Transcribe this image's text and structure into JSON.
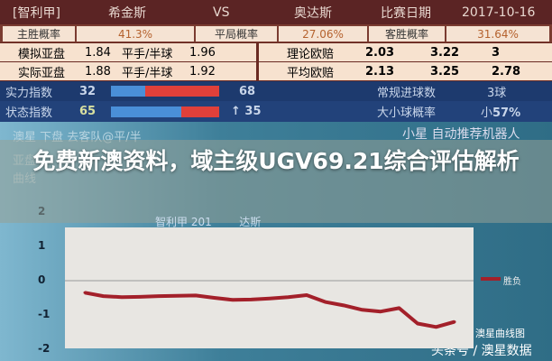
{
  "header": {
    "league": "[智利甲]",
    "home": "希金斯",
    "vs": "VS",
    "away": "奥达斯",
    "date_label": "比赛日期",
    "date": "2017-10-16"
  },
  "prob": {
    "home_label": "主胜概率",
    "home": "41.3%",
    "draw_label": "平局概率",
    "draw": "27.06%",
    "away_label": "客胜概率",
    "away": "31.64%"
  },
  "sim_ah": {
    "label": "模拟亚盘",
    "home": "1.84",
    "line": "平手/半球",
    "away": "1.96",
    "eu_label": "理论欧赔",
    "w": "2.03",
    "d": "3.22",
    "l": "3"
  },
  "real_ah": {
    "label": "实际亚盘",
    "home": "1.88",
    "line": "平手/半球",
    "away": "1.92",
    "eu_label": "平均欧赔",
    "w": "2.13",
    "d": "3.25",
    "l": "2.78"
  },
  "strength": {
    "label": "实力指数",
    "home": "32",
    "away": "68",
    "home_pct": 32,
    "goals_label": "常规进球数",
    "goals": "3球"
  },
  "form": {
    "label": "状态指数",
    "home": "65",
    "away": "↑ 35",
    "home_pct": 65,
    "ou_label": "大小球概率",
    "ou_prefix": "小",
    "ou": "57%"
  },
  "lower": {
    "line1": "澳星  下盘  去客队@平/半",
    "line2": "亚盘",
    "line3": "曲线",
    "robot": "小星  自动推荐机器人",
    "chart_title": "智利甲 201        达斯",
    "legend": "胜负",
    "wm1": "澳星曲线图",
    "wm2": "头条号 / 澳星数据"
  },
  "overlay_title": "免费新澳资料，域主级UGV69.21综合评估解析",
  "colors": {
    "home_bar": "#4a8fd8",
    "away_bar": "#e0403a",
    "line": "#a3202a"
  },
  "chart_data": {
    "type": "line",
    "yticks": [
      "2",
      "1",
      "0",
      "-1",
      "-2"
    ],
    "ylim": [
      -2,
      2
    ],
    "y": [
      -0.35,
      -0.45,
      -0.48,
      -0.47,
      -0.45,
      -0.44,
      -0.43,
      -0.5,
      -0.56,
      -0.55,
      -0.52,
      -0.48,
      -0.42,
      -0.62,
      -0.72,
      -0.85,
      -0.9,
      -0.8,
      -1.25,
      -1.35,
      -1.2
    ]
  }
}
